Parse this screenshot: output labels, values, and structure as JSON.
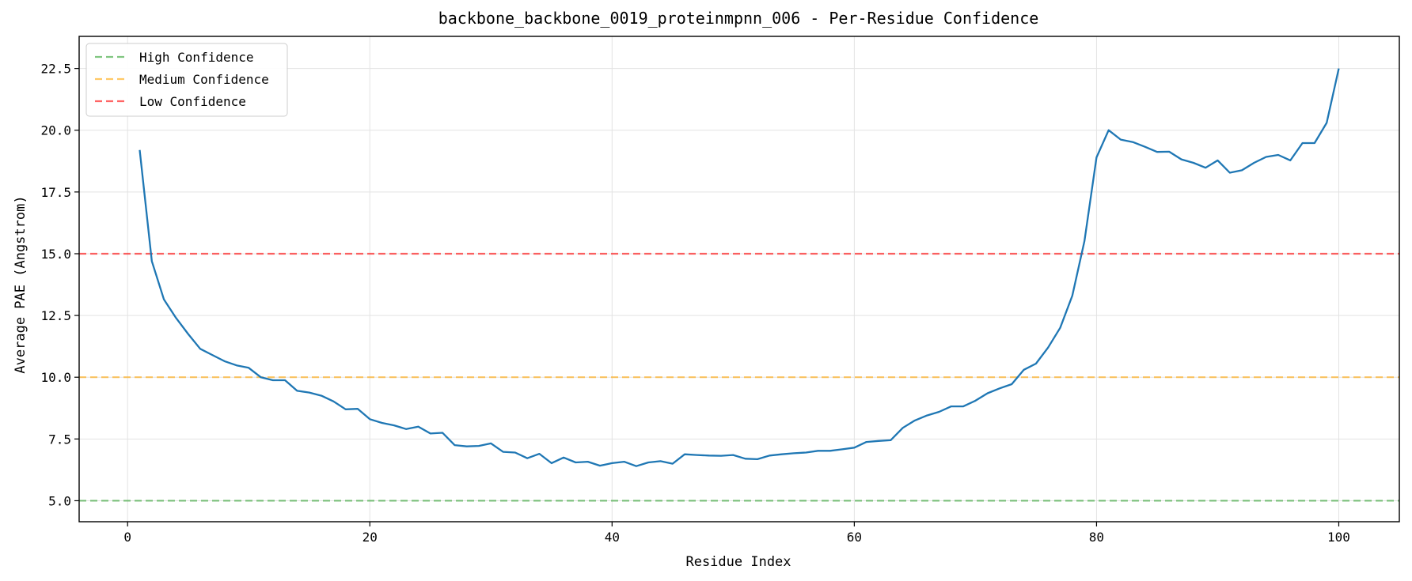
{
  "chart_data": {
    "type": "line",
    "title": "backbone_backbone_0019_proteinmpnn_006 - Per-Residue Confidence",
    "xlabel": "Residue Index",
    "ylabel": "Average PAE (Angstrom)",
    "xlim": [
      -4,
      105
    ],
    "ylim": [
      4.15,
      23.8
    ],
    "xticks": [
      0,
      20,
      40,
      60,
      80,
      100
    ],
    "yticks": [
      5.0,
      7.5,
      10.0,
      12.5,
      15.0,
      17.5,
      20.0,
      22.5
    ],
    "grid": true,
    "legend_position": "top-left",
    "series": [
      {
        "color": "#1f77b4",
        "x": [
          1,
          2,
          3,
          4,
          5,
          6,
          7,
          8,
          9,
          10,
          11,
          12,
          13,
          14,
          15,
          16,
          17,
          18,
          19,
          20,
          21,
          22,
          23,
          24,
          25,
          26,
          27,
          28,
          29,
          30,
          31,
          32,
          33,
          34,
          35,
          36,
          37,
          38,
          39,
          40,
          41,
          42,
          43,
          44,
          45,
          46,
          47,
          48,
          49,
          50,
          51,
          52,
          53,
          54,
          55,
          56,
          57,
          58,
          59,
          60,
          61,
          62,
          63,
          64,
          65,
          66,
          67,
          68,
          69,
          70,
          71,
          72,
          73,
          74,
          75,
          76,
          77,
          78,
          79,
          80,
          81,
          82,
          83,
          84,
          85,
          86,
          87,
          88,
          89,
          90,
          91,
          92,
          93,
          94,
          95,
          96,
          97,
          98,
          99,
          100
        ],
        "values": [
          19.2,
          14.7,
          13.15,
          12.4,
          11.75,
          11.15,
          10.9,
          10.65,
          10.48,
          10.38,
          10.0,
          9.88,
          9.88,
          9.45,
          9.38,
          9.25,
          9.02,
          8.7,
          8.72,
          8.3,
          8.15,
          8.05,
          7.9,
          8.0,
          7.72,
          7.75,
          7.25,
          7.2,
          7.22,
          7.32,
          6.98,
          6.95,
          6.72,
          6.9,
          6.52,
          6.75,
          6.55,
          6.58,
          6.42,
          6.52,
          6.58,
          6.4,
          6.55,
          6.6,
          6.5,
          6.88,
          6.85,
          6.83,
          6.82,
          6.85,
          6.7,
          6.68,
          6.83,
          6.88,
          6.92,
          6.95,
          7.02,
          7.02,
          7.08,
          7.15,
          7.38,
          7.42,
          7.45,
          7.95,
          8.25,
          8.45,
          8.6,
          8.82,
          8.82,
          9.05,
          9.35,
          9.55,
          9.72,
          10.3,
          10.55,
          11.2,
          12.0,
          13.3,
          15.5,
          18.9,
          20.0,
          19.62,
          19.52,
          19.33,
          19.12,
          19.13,
          18.82,
          18.68,
          18.48,
          18.78,
          18.28,
          18.38,
          18.68,
          18.92,
          19.0,
          18.78,
          19.48,
          19.48,
          20.3,
          22.5
        ]
      }
    ],
    "reference_lines": [
      {
        "name": "High Confidence",
        "y": 5.0,
        "color": "#2ca02c"
      },
      {
        "name": "Medium Confidence",
        "y": 10.0,
        "color": "#ffa500"
      },
      {
        "name": "Low Confidence",
        "y": 15.0,
        "color": "#ff0000"
      }
    ]
  }
}
